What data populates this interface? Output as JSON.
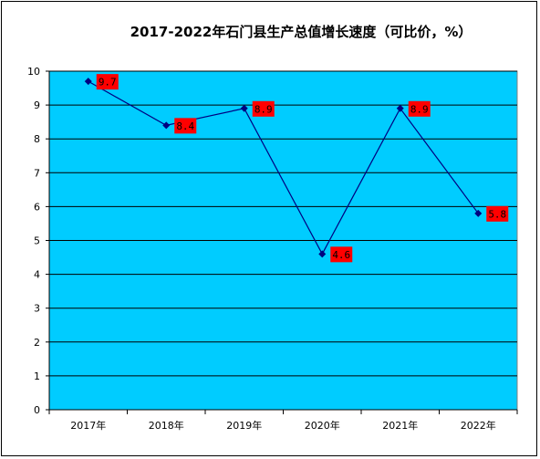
{
  "chart_data": {
    "type": "line",
    "title": "2017-2022年石门县生产总值增长速度（可比价，%）",
    "categories": [
      "2017年",
      "2018年",
      "2019年",
      "2020年",
      "2021年",
      "2022年"
    ],
    "series": [
      {
        "values": [
          9.7,
          8.4,
          8.9,
          4.6,
          8.9,
          5.8
        ]
      }
    ],
    "data_labels": [
      "9.7",
      "8.4",
      "8.9",
      "4.6",
      "8.9",
      "5.8"
    ],
    "y_ticks": [
      "0",
      "1",
      "2",
      "3",
      "4",
      "5",
      "6",
      "7",
      "8",
      "9",
      "10"
    ],
    "ylim": [
      0,
      10
    ],
    "grid": true,
    "colors": {
      "plot_background": "#00CCFF",
      "line": "#000080",
      "label_background": "#FF0000",
      "gridline": "#000000"
    }
  }
}
